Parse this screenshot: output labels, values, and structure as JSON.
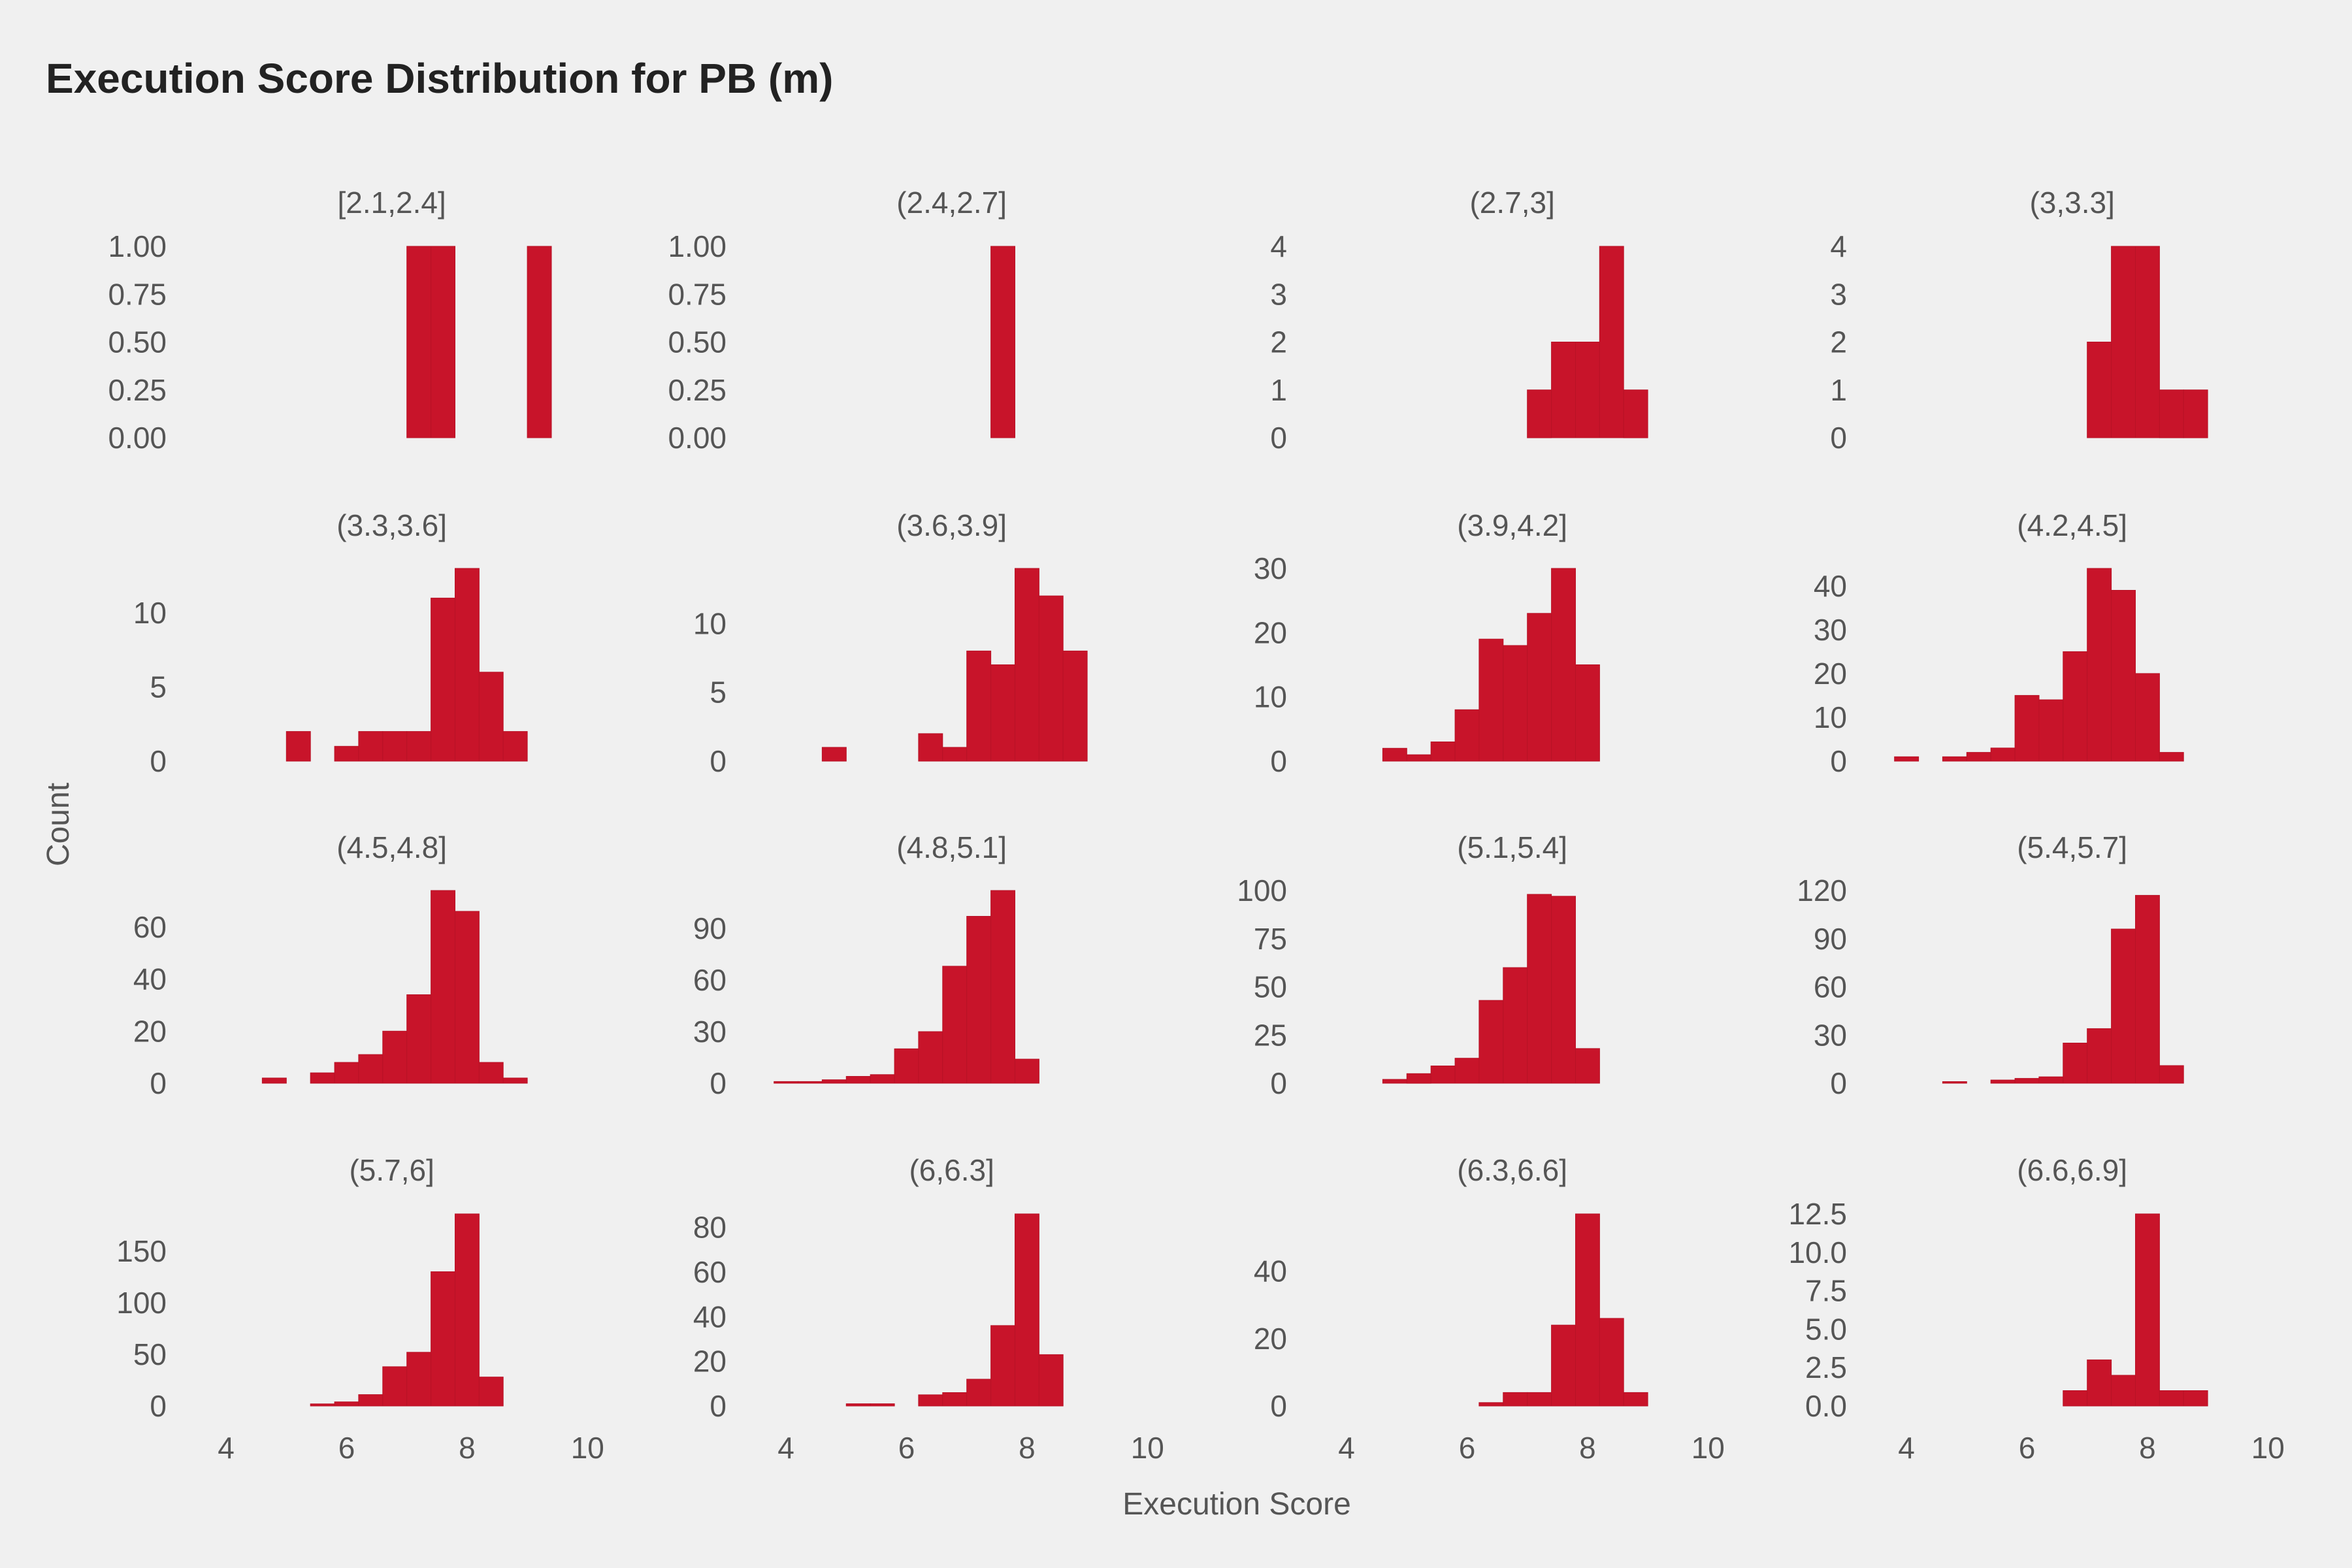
{
  "title": "Execution Score Distribution for PB (m)",
  "colors": {
    "bar": "#c8142a",
    "background": "#f0f0f0",
    "text": "#555555",
    "title": "#222222"
  },
  "chart_data": {
    "type": "bar",
    "subtype": "faceted-histogram",
    "title": "Execution Score Distribution for PB (m)",
    "xlabel": "Execution Score",
    "ylabel": "Count",
    "xlim": [
      3.5,
      10.2
    ],
    "x_ticks": [
      4,
      6,
      8,
      10
    ],
    "grid": false,
    "legend": "none",
    "bin_width": 0.4,
    "panels": [
      {
        "label": "[2.1,2.4]",
        "y_ticks": [
          "0.00",
          "0.25",
          "0.50",
          "0.75",
          "1.00"
        ],
        "ymax": 1,
        "bins": [
          {
            "x": 7.0,
            "count": 1
          },
          {
            "x": 7.4,
            "count": 1
          },
          {
            "x": 9.0,
            "count": 1
          }
        ]
      },
      {
        "label": "(2.4,2.7]",
        "y_ticks": [
          "0.00",
          "0.25",
          "0.50",
          "0.75",
          "1.00"
        ],
        "ymax": 1,
        "bins": [
          {
            "x": 7.4,
            "count": 1
          }
        ]
      },
      {
        "label": "(2.7,3]",
        "y_ticks": [
          "0",
          "1",
          "2",
          "3",
          "4"
        ],
        "ymax": 4,
        "bins": [
          {
            "x": 7.0,
            "count": 1
          },
          {
            "x": 7.4,
            "count": 2
          },
          {
            "x": 7.8,
            "count": 2
          },
          {
            "x": 8.2,
            "count": 4
          },
          {
            "x": 8.6,
            "count": 1
          }
        ]
      },
      {
        "label": "(3,3.3]",
        "y_ticks": [
          "0",
          "1",
          "2",
          "3",
          "4"
        ],
        "ymax": 4,
        "bins": [
          {
            "x": 7.0,
            "count": 2
          },
          {
            "x": 7.4,
            "count": 4
          },
          {
            "x": 7.8,
            "count": 4
          },
          {
            "x": 8.2,
            "count": 1
          },
          {
            "x": 8.6,
            "count": 1
          }
        ]
      },
      {
        "label": "(3.3,3.6]",
        "y_ticks": [
          "0",
          "5",
          "10"
        ],
        "ymax": 13,
        "bins": [
          {
            "x": 5.0,
            "count": 2
          },
          {
            "x": 5.8,
            "count": 1
          },
          {
            "x": 6.2,
            "count": 2
          },
          {
            "x": 6.6,
            "count": 2
          },
          {
            "x": 7.0,
            "count": 2
          },
          {
            "x": 7.4,
            "count": 11
          },
          {
            "x": 7.8,
            "count": 13
          },
          {
            "x": 8.2,
            "count": 6
          },
          {
            "x": 8.6,
            "count": 2
          }
        ]
      },
      {
        "label": "(3.6,3.9]",
        "y_ticks": [
          "0",
          "5",
          "10"
        ],
        "ymax": 14,
        "bins": [
          {
            "x": 4.6,
            "count": 1
          },
          {
            "x": 6.2,
            "count": 2
          },
          {
            "x": 6.6,
            "count": 1
          },
          {
            "x": 7.0,
            "count": 8
          },
          {
            "x": 7.4,
            "count": 7
          },
          {
            "x": 7.8,
            "count": 14
          },
          {
            "x": 8.2,
            "count": 12
          },
          {
            "x": 8.6,
            "count": 8
          }
        ]
      },
      {
        "label": "(3.9,4.2]",
        "y_ticks": [
          "0",
          "10",
          "20",
          "30"
        ],
        "ymax": 30,
        "bins": [
          {
            "x": 4.6,
            "count": 2
          },
          {
            "x": 5.0,
            "count": 1
          },
          {
            "x": 5.4,
            "count": 3
          },
          {
            "x": 5.8,
            "count": 8
          },
          {
            "x": 6.2,
            "count": 19
          },
          {
            "x": 6.6,
            "count": 18
          },
          {
            "x": 7.0,
            "count": 23
          },
          {
            "x": 7.4,
            "count": 30
          },
          {
            "x": 7.8,
            "count": 15
          }
        ]
      },
      {
        "label": "(4.2,4.5]",
        "y_ticks": [
          "0",
          "10",
          "20",
          "30",
          "40"
        ],
        "ymax": 44,
        "bins": [
          {
            "x": 3.8,
            "count": 1
          },
          {
            "x": 4.6,
            "count": 1
          },
          {
            "x": 5.0,
            "count": 2
          },
          {
            "x": 5.4,
            "count": 3
          },
          {
            "x": 5.8,
            "count": 15
          },
          {
            "x": 6.2,
            "count": 14
          },
          {
            "x": 6.6,
            "count": 25
          },
          {
            "x": 7.0,
            "count": 44
          },
          {
            "x": 7.4,
            "count": 39
          },
          {
            "x": 7.8,
            "count": 20
          },
          {
            "x": 8.2,
            "count": 2
          }
        ]
      },
      {
        "label": "(4.5,4.8]",
        "y_ticks": [
          "0",
          "20",
          "40",
          "60"
        ],
        "ymax": 74,
        "bins": [
          {
            "x": 4.6,
            "count": 2
          },
          {
            "x": 5.4,
            "count": 4
          },
          {
            "x": 5.8,
            "count": 8
          },
          {
            "x": 6.2,
            "count": 11
          },
          {
            "x": 6.6,
            "count": 20
          },
          {
            "x": 7.0,
            "count": 34
          },
          {
            "x": 7.4,
            "count": 74
          },
          {
            "x": 7.8,
            "count": 66
          },
          {
            "x": 8.2,
            "count": 8
          },
          {
            "x": 8.6,
            "count": 2
          }
        ]
      },
      {
        "label": "(4.8,5.1]",
        "y_ticks": [
          "0",
          "30",
          "60",
          "90"
        ],
        "ymax": 112,
        "bins": [
          {
            "x": 3.8,
            "count": 1
          },
          {
            "x": 4.2,
            "count": 1
          },
          {
            "x": 4.6,
            "count": 2
          },
          {
            "x": 5.0,
            "count": 4
          },
          {
            "x": 5.4,
            "count": 5
          },
          {
            "x": 5.8,
            "count": 20
          },
          {
            "x": 6.2,
            "count": 30
          },
          {
            "x": 6.6,
            "count": 68
          },
          {
            "x": 7.0,
            "count": 97
          },
          {
            "x": 7.4,
            "count": 112
          },
          {
            "x": 7.8,
            "count": 14
          }
        ]
      },
      {
        "label": "(5.1,5.4]",
        "y_ticks": [
          "0",
          "25",
          "50",
          "75",
          "100"
        ],
        "ymax": 98,
        "bins": [
          {
            "x": 4.6,
            "count": 2
          },
          {
            "x": 5.0,
            "count": 5
          },
          {
            "x": 5.4,
            "count": 9
          },
          {
            "x": 5.8,
            "count": 13
          },
          {
            "x": 6.2,
            "count": 43
          },
          {
            "x": 6.6,
            "count": 60
          },
          {
            "x": 7.0,
            "count": 98
          },
          {
            "x": 7.4,
            "count": 97
          },
          {
            "x": 7.8,
            "count": 18
          }
        ]
      },
      {
        "label": "(5.4,5.7]",
        "y_ticks": [
          "0",
          "30",
          "60",
          "90",
          "120"
        ],
        "ymax": 117,
        "bins": [
          {
            "x": 4.6,
            "count": 1
          },
          {
            "x": 5.4,
            "count": 2
          },
          {
            "x": 5.8,
            "count": 3
          },
          {
            "x": 6.2,
            "count": 4
          },
          {
            "x": 6.6,
            "count": 25
          },
          {
            "x": 7.0,
            "count": 34
          },
          {
            "x": 7.4,
            "count": 96
          },
          {
            "x": 7.8,
            "count": 117
          },
          {
            "x": 8.2,
            "count": 11
          }
        ]
      },
      {
        "label": "(5.7,6]",
        "y_ticks": [
          "0",
          "50",
          "100",
          "150"
        ],
        "ymax": 186,
        "bins": [
          {
            "x": 5.4,
            "count": 2
          },
          {
            "x": 5.8,
            "count": 4
          },
          {
            "x": 6.2,
            "count": 11
          },
          {
            "x": 6.6,
            "count": 38
          },
          {
            "x": 7.0,
            "count": 52
          },
          {
            "x": 7.4,
            "count": 130
          },
          {
            "x": 7.8,
            "count": 186
          },
          {
            "x": 8.2,
            "count": 28
          }
        ]
      },
      {
        "label": "(6,6.3]",
        "y_ticks": [
          "0",
          "20",
          "40",
          "60",
          "80"
        ],
        "ymax": 86,
        "bins": [
          {
            "x": 5.0,
            "count": 1
          },
          {
            "x": 5.4,
            "count": 1
          },
          {
            "x": 6.2,
            "count": 5
          },
          {
            "x": 6.6,
            "count": 6
          },
          {
            "x": 7.0,
            "count": 12
          },
          {
            "x": 7.4,
            "count": 36
          },
          {
            "x": 7.8,
            "count": 86
          },
          {
            "x": 8.2,
            "count": 23
          }
        ]
      },
      {
        "label": "(6.3,6.6]",
        "y_ticks": [
          "0",
          "20",
          "40"
        ],
        "ymax": 57,
        "bins": [
          {
            "x": 6.2,
            "count": 1
          },
          {
            "x": 6.6,
            "count": 4
          },
          {
            "x": 7.0,
            "count": 4
          },
          {
            "x": 7.4,
            "count": 24
          },
          {
            "x": 7.8,
            "count": 57
          },
          {
            "x": 8.2,
            "count": 26
          },
          {
            "x": 8.6,
            "count": 4
          }
        ]
      },
      {
        "label": "(6.6,6.9]",
        "y_ticks": [
          "0.0",
          "2.5",
          "5.0",
          "7.5",
          "10.0",
          "12.5"
        ],
        "ymax": 12.5,
        "bins": [
          {
            "x": 6.6,
            "count": 1
          },
          {
            "x": 7.0,
            "count": 3
          },
          {
            "x": 7.4,
            "count": 2
          },
          {
            "x": 7.8,
            "count": 12.5
          },
          {
            "x": 8.2,
            "count": 1
          },
          {
            "x": 8.6,
            "count": 1
          }
        ]
      }
    ]
  }
}
